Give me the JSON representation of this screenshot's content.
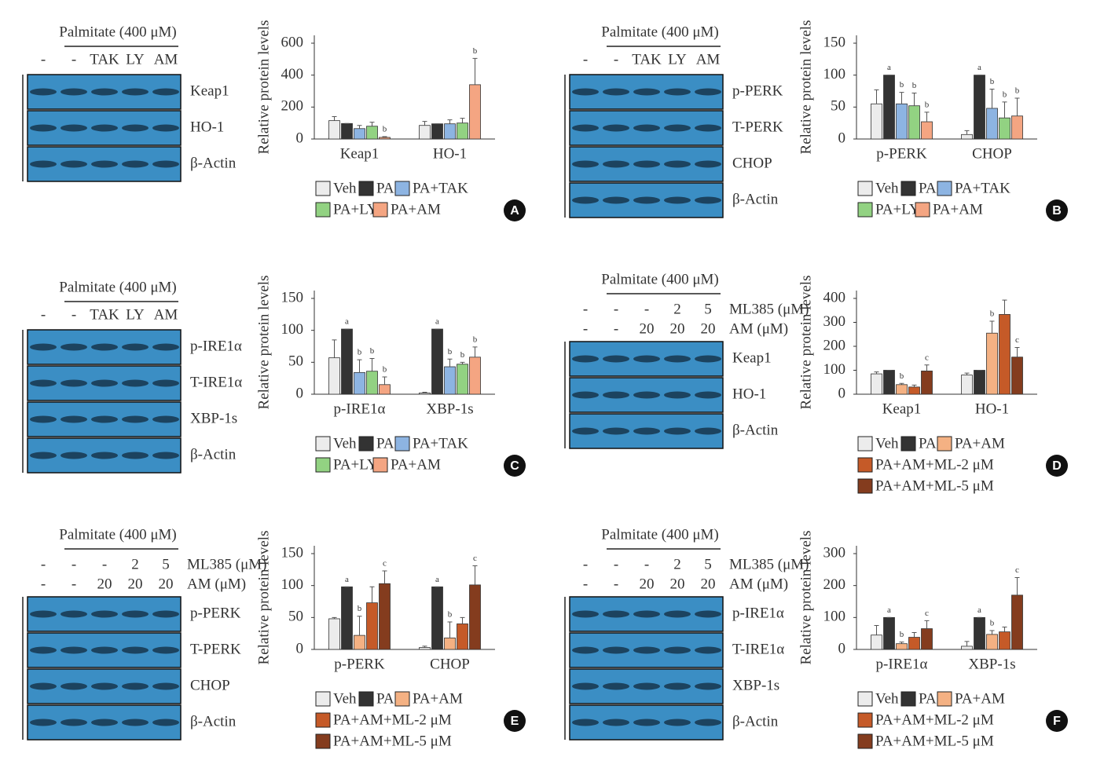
{
  "chart_data": [
    {
      "type": "bar",
      "ylabel": "Relative protein levels",
      "categories": [
        "Keap1",
        "HO-1"
      ],
      "ylim": [
        0,
        600
      ],
      "yticks": [
        0,
        200,
        400,
        600
      ],
      "series": [
        {
          "name": "Veh",
          "color": "#ececec",
          "values": [
            115,
            85
          ],
          "errors": [
            25,
            25
          ],
          "annotations": [
            null,
            null
          ]
        },
        {
          "name": "PA",
          "color": "#333333",
          "values": [
            97,
            95
          ],
          "errors": [
            0,
            0
          ],
          "annotations": [
            null,
            null
          ]
        },
        {
          "name": "PA+TAK",
          "color": "#8db4e2",
          "values": [
            65,
            95
          ],
          "errors": [
            20,
            25
          ],
          "annotations": [
            null,
            null
          ]
        },
        {
          "name": "PA+LY",
          "color": "#92d282",
          "values": [
            80,
            100
          ],
          "errors": [
            25,
            30
          ],
          "annotations": [
            null,
            null
          ]
        },
        {
          "name": "PA+AM",
          "color": "#f4a582",
          "values": [
            10,
            340
          ],
          "errors": [
            5,
            165
          ],
          "annotations": [
            "b",
            "b"
          ]
        }
      ]
    },
    {
      "type": "bar",
      "ylabel": "Relative protein levels",
      "categories": [
        "p-PERK",
        "CHOP"
      ],
      "ylim": [
        0,
        150
      ],
      "yticks": [
        0,
        50,
        100,
        150
      ],
      "series": [
        {
          "name": "Veh",
          "color": "#ececec",
          "values": [
            55,
            7
          ],
          "errors": [
            22,
            6
          ],
          "annotations": [
            null,
            null
          ]
        },
        {
          "name": "PA",
          "color": "#333333",
          "values": [
            100,
            100
          ],
          "errors": [
            0,
            0
          ],
          "annotations": [
            "a",
            "a"
          ]
        },
        {
          "name": "PA+TAK",
          "color": "#8db4e2",
          "values": [
            55,
            48
          ],
          "errors": [
            18,
            30
          ],
          "annotations": [
            "b",
            "b"
          ]
        },
        {
          "name": "PA+LY",
          "color": "#92d282",
          "values": [
            52,
            33
          ],
          "errors": [
            20,
            25
          ],
          "annotations": [
            "b",
            "b"
          ]
        },
        {
          "name": "PA+AM",
          "color": "#f4a582",
          "values": [
            27,
            36
          ],
          "errors": [
            15,
            28
          ],
          "annotations": [
            "b",
            "b"
          ]
        }
      ]
    },
    {
      "type": "bar",
      "ylabel": "Relative protein levels",
      "categories": [
        "p-IRE1α",
        "XBP-1s"
      ],
      "ylim": [
        0,
        150
      ],
      "yticks": [
        0,
        50,
        100,
        150
      ],
      "series": [
        {
          "name": "Veh",
          "color": "#ececec",
          "values": [
            57,
            2
          ],
          "errors": [
            28,
            1
          ],
          "annotations": [
            null,
            null
          ]
        },
        {
          "name": "PA",
          "color": "#333333",
          "values": [
            102,
            102
          ],
          "errors": [
            0,
            0
          ],
          "annotations": [
            "a",
            "a"
          ]
        },
        {
          "name": "PA+TAK",
          "color": "#8db4e2",
          "values": [
            34,
            43
          ],
          "errors": [
            20,
            12
          ],
          "annotations": [
            "b",
            "b"
          ]
        },
        {
          "name": "PA+LY",
          "color": "#92d282",
          "values": [
            36,
            47
          ],
          "errors": [
            20,
            3
          ],
          "annotations": [
            "b",
            "b"
          ]
        },
        {
          "name": "PA+AM",
          "color": "#f4a582",
          "values": [
            15,
            58
          ],
          "errors": [
            12,
            16
          ],
          "annotations": [
            "b",
            "b"
          ]
        }
      ]
    },
    {
      "type": "bar",
      "ylabel": "Relative protein levels",
      "categories": [
        "Keap1",
        "HO-1"
      ],
      "ylim": [
        0,
        400
      ],
      "yticks": [
        0,
        100,
        200,
        300,
        400
      ],
      "series": [
        {
          "name": "Veh",
          "color": "#ececec",
          "values": [
            85,
            80
          ],
          "errors": [
            8,
            8
          ],
          "annotations": [
            null,
            null
          ]
        },
        {
          "name": "PA",
          "color": "#333333",
          "values": [
            100,
            100
          ],
          "errors": [
            0,
            0
          ],
          "annotations": [
            null,
            null
          ]
        },
        {
          "name": "PA+AM",
          "color": "#f4b183",
          "values": [
            40,
            255
          ],
          "errors": [
            5,
            50
          ],
          "annotations": [
            "b",
            "b"
          ]
        },
        {
          "name": "PA+AM+ML-2 μM",
          "color": "#c55a28",
          "values": [
            30,
            333
          ],
          "errors": [
            8,
            60
          ],
          "annotations": [
            null,
            null
          ]
        },
        {
          "name": "PA+AM+ML-5 μM",
          "color": "#843c1e",
          "values": [
            97,
            155
          ],
          "errors": [
            25,
            40
          ],
          "annotations": [
            "c",
            "c"
          ]
        }
      ]
    },
    {
      "type": "bar",
      "ylabel": "Relative protein levels",
      "categories": [
        "p-PERK",
        "CHOP"
      ],
      "ylim": [
        0,
        150
      ],
      "yticks": [
        0,
        50,
        100,
        150
      ],
      "series": [
        {
          "name": "Veh",
          "color": "#ececec",
          "values": [
            48,
            3
          ],
          "errors": [
            2,
            2
          ],
          "annotations": [
            null,
            null
          ]
        },
        {
          "name": "PA",
          "color": "#333333",
          "values": [
            98,
            98
          ],
          "errors": [
            0,
            0
          ],
          "annotations": [
            "a",
            "a"
          ]
        },
        {
          "name": "PA+AM",
          "color": "#f4b183",
          "values": [
            22,
            18
          ],
          "errors": [
            30,
            25
          ],
          "annotations": [
            "b",
            "b"
          ]
        },
        {
          "name": "PA+AM+ML-2 μM",
          "color": "#c55a28",
          "values": [
            73,
            40
          ],
          "errors": [
            25,
            10
          ],
          "annotations": [
            null,
            null
          ]
        },
        {
          "name": "PA+AM+ML-5 μM",
          "color": "#843c1e",
          "values": [
            103,
            101
          ],
          "errors": [
            20,
            30
          ],
          "annotations": [
            "c",
            "c"
          ]
        }
      ]
    },
    {
      "type": "bar",
      "ylabel": "Relative protein levels",
      "categories": [
        "p-IRE1α",
        "XBP-1s"
      ],
      "ylim": [
        0,
        300
      ],
      "yticks": [
        0,
        100,
        200,
        300
      ],
      "series": [
        {
          "name": "Veh",
          "color": "#ececec",
          "values": [
            45,
            10
          ],
          "errors": [
            30,
            15
          ],
          "annotations": [
            null,
            null
          ]
        },
        {
          "name": "PA",
          "color": "#333333",
          "values": [
            100,
            100
          ],
          "errors": [
            0,
            0
          ],
          "annotations": [
            "a",
            "a"
          ]
        },
        {
          "name": "PA+AM",
          "color": "#f4b183",
          "values": [
            18,
            47
          ],
          "errors": [
            5,
            12
          ],
          "annotations": [
            "b",
            "b"
          ]
        },
        {
          "name": "PA+AM+ML-2 μM",
          "color": "#c55a28",
          "values": [
            38,
            55
          ],
          "errors": [
            15,
            15
          ],
          "annotations": [
            null,
            null
          ]
        },
        {
          "name": "PA+AM+ML-5 μM",
          "color": "#843c1e",
          "values": [
            65,
            170
          ],
          "errors": [
            25,
            55
          ],
          "annotations": [
            "c",
            "c"
          ]
        }
      ]
    }
  ],
  "blots": [
    {
      "header": "Palmitate (400 μM)",
      "lane_rows": [
        {
          "lanes": [
            "-",
            "-",
            "TAK",
            "LY",
            "AM"
          ]
        }
      ],
      "bands": [
        "Keap1",
        "HO-1",
        "β-Actin"
      ]
    },
    {
      "header": "Palmitate (400 μM)",
      "lane_rows": [
        {
          "lanes": [
            "-",
            "-",
            "TAK",
            "LY",
            "AM"
          ]
        }
      ],
      "bands": [
        "p-PERK",
        "T-PERK",
        "CHOP",
        "β-Actin"
      ]
    },
    {
      "header": "Palmitate (400 μM)",
      "lane_rows": [
        {
          "lanes": [
            "-",
            "-",
            "TAK",
            "LY",
            "AM"
          ]
        }
      ],
      "bands": [
        "p-IRE1α",
        "T-IRE1α",
        "XBP-1s",
        "β-Actin"
      ]
    },
    {
      "header": "Palmitate (400 μM)",
      "lane_rows": [
        {
          "lanes": [
            "-",
            "-",
            "-",
            "2",
            "5"
          ],
          "label": "ML385 (μM)"
        },
        {
          "lanes": [
            "-",
            "-",
            "20",
            "20",
            "20"
          ],
          "label": "AM (μM)"
        }
      ],
      "bands": [
        "Keap1",
        "HO-1",
        "β-Actin"
      ]
    },
    {
      "header": "Palmitate (400 μM)",
      "lane_rows": [
        {
          "lanes": [
            "-",
            "-",
            "-",
            "2",
            "5"
          ],
          "label": "ML385 (μM)"
        },
        {
          "lanes": [
            "-",
            "-",
            "20",
            "20",
            "20"
          ],
          "label": "AM (μM)"
        }
      ],
      "bands": [
        "p-PERK",
        "T-PERK",
        "CHOP",
        "β-Actin"
      ]
    },
    {
      "header": "Palmitate (400 μM)",
      "lane_rows": [
        {
          "lanes": [
            "-",
            "-",
            "-",
            "2",
            "5"
          ],
          "label": "ML385 (μM)"
        },
        {
          "lanes": [
            "-",
            "-",
            "20",
            "20",
            "20"
          ],
          "label": "AM (μM)"
        }
      ],
      "bands": [
        "p-IRE1α",
        "T-IRE1α",
        "XBP-1s",
        "β-Actin"
      ]
    }
  ],
  "panel_labels": [
    "A",
    "B",
    "C",
    "D",
    "E",
    "F"
  ]
}
